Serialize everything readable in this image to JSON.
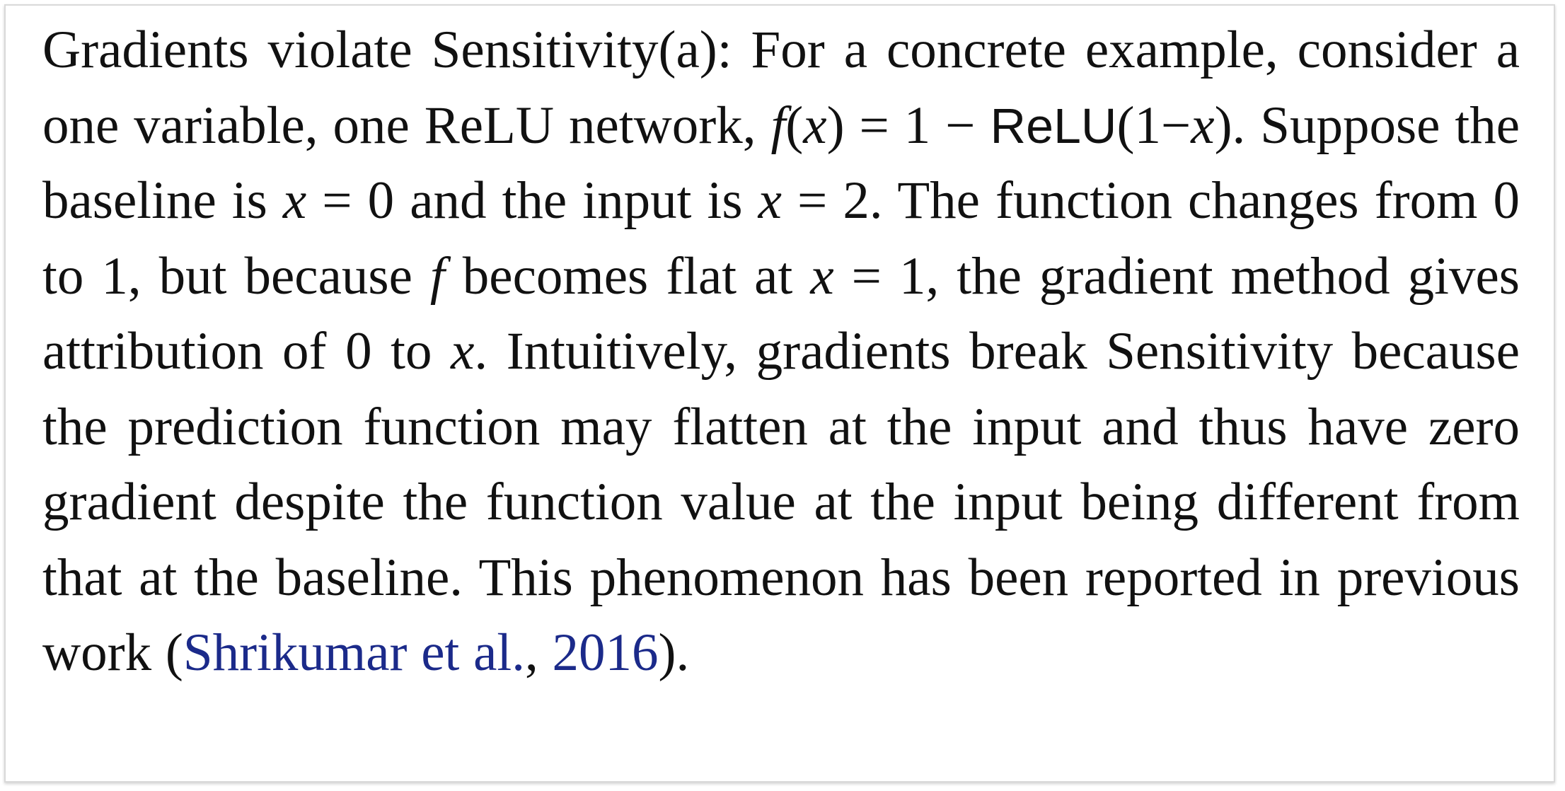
{
  "paragraph": {
    "p1": "Gradients violate Sensitivity(a): For a concrete example, consider a one variable, one ReLU network,",
    "f": "f",
    "lpar": "(",
    "x": "x",
    "rpar": ")",
    "eq_one_minus": "= 1 −",
    "relu_word": "ReLU",
    "paren_1_minus": "(1−",
    "paren_close": ")",
    "p2": ". Suppose the baseline is",
    "eq_zero": "= 0",
    "p3": "and the input is",
    "eq_two": "= 2",
    "p4": ". The function changes from",
    "num0": "0",
    "to": "to",
    "num1": "1",
    "p5": ", but because",
    "p6": "becomes flat at",
    "eq_one": "= 1",
    "p7": ", the gradient method gives attribution of",
    "p8": "0 to",
    "p9": ". Intuitively, gradients break Sensitivity because the prediction function may flatten at the input and thus have zero gradient despite the function value at the input being different from that at the baseline. This phenomenon has been reported in previous work (",
    "citation_author": "Shrikumar et al.",
    "citation_comma": ", ",
    "citation_year": "2016",
    "p10": ")."
  },
  "colors": {
    "text": "#111111",
    "citation_link": "#1b2a8a",
    "border": "#d9d9d9"
  }
}
